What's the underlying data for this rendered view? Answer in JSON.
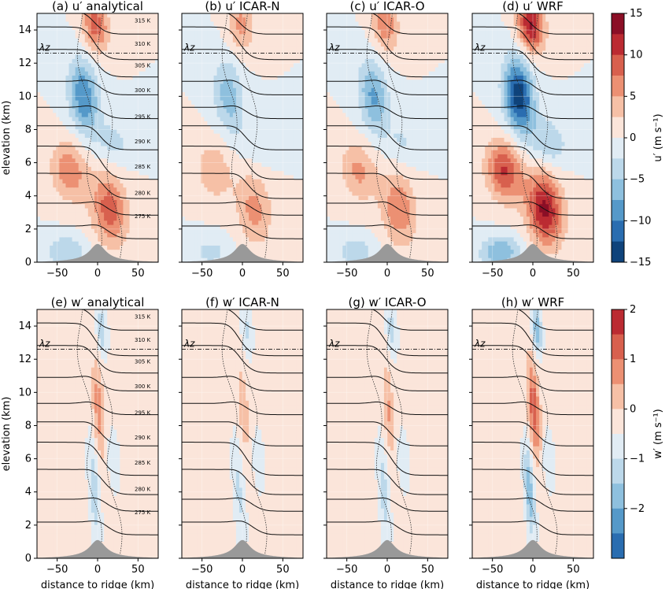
{
  "figure": {
    "xlabel": "distance to ridge (km)",
    "ylabel": "elevation (km)",
    "lambda_label": "λz",
    "xticks": [
      -50,
      0,
      50
    ],
    "yticks": [
      0,
      2,
      4,
      6,
      8,
      10,
      12,
      14
    ],
    "xlim": [
      -75,
      75
    ],
    "ylim": [
      0,
      15
    ],
    "lambda_z_km": 12.6
  },
  "theta_labels": [
    "315 K",
    "310 K",
    "305 K",
    "300 K",
    "295 K",
    "290 K",
    "285 K",
    "280 K",
    "275 K"
  ],
  "colorbar_u": {
    "label": "u′ (m s⁻¹)",
    "ticks": [
      "15",
      "10",
      "5",
      "0",
      "−5",
      "−10",
      "−15"
    ],
    "range": [
      -15,
      15
    ]
  },
  "colorbar_w": {
    "label": "w′ (m s⁻¹)",
    "ticks": [
      "2",
      "1",
      "0",
      "−1",
      "−2"
    ],
    "range": [
      -2.5,
      2.5
    ]
  },
  "colors": {
    "red": [
      "#fbe5da",
      "#f6c0a6",
      "#ec9073",
      "#d8604e",
      "#bb2b32",
      "#8b0f26"
    ],
    "blue": [
      "#e1ecf4",
      "#bcd8ea",
      "#8ec0de",
      "#5599c9",
      "#2a6db0",
      "#0f437b"
    ],
    "mountain": "#999999"
  },
  "chart_data": [
    {
      "type": "heatmap",
      "panel": "a",
      "title": "(a) u′ analytical"
    },
    {
      "type": "heatmap",
      "panel": "b",
      "title": "(b) u′ ICAR-N"
    },
    {
      "type": "heatmap",
      "panel": "c",
      "title": "(c) u′ ICAR-O"
    },
    {
      "type": "heatmap",
      "panel": "d",
      "title": "(d) u′ WRF"
    },
    {
      "type": "heatmap",
      "panel": "e",
      "title": "(e) w′ analytical"
    },
    {
      "type": "heatmap",
      "panel": "f",
      "title": "(f) w′ ICAR-N"
    },
    {
      "type": "heatmap",
      "panel": "g",
      "title": "(g) w′ ICAR-O"
    },
    {
      "type": "heatmap",
      "panel": "h",
      "title": "(h) w′ WRF"
    }
  ]
}
